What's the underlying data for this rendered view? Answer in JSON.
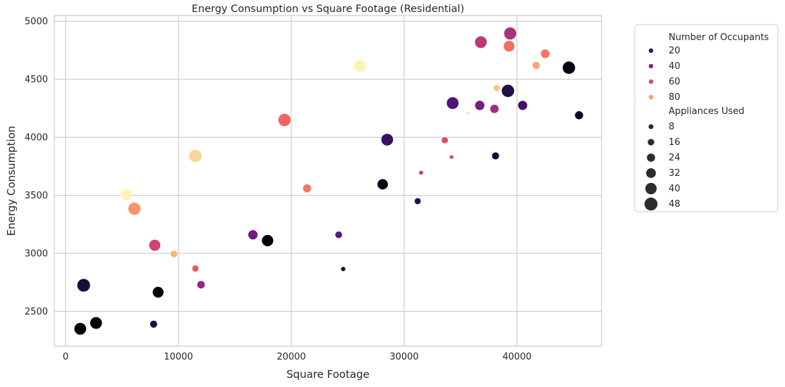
{
  "chart_data": {
    "type": "scatter",
    "title": "Energy Consumption vs Square Footage (Residential)",
    "xlabel": "Square Footage",
    "ylabel": "Energy Consumption",
    "xlim": [
      -1000,
      47500
    ],
    "ylim": [
      2200,
      5050
    ],
    "xticks": [
      0,
      10000,
      20000,
      30000,
      40000
    ],
    "yticks": [
      2500,
      3000,
      3500,
      4000,
      4500,
      5000
    ],
    "grid": true,
    "legend_position": "outside-right",
    "hue": {
      "title": "Number of Occupants",
      "palette": "magma",
      "range": [
        1,
        100
      ],
      "entries": [
        {
          "label": "20",
          "value": 20,
          "color": "#3b0f70"
        },
        {
          "label": "40",
          "value": 40,
          "color": "#8c2981"
        },
        {
          "label": "60",
          "value": 60,
          "color": "#de4968"
        },
        {
          "label": "80",
          "value": 80,
          "color": "#fe9f6d"
        }
      ]
    },
    "size": {
      "title": "Appliances Used",
      "range": [
        1,
        50
      ],
      "entries": [
        {
          "label": "8",
          "value": 8
        },
        {
          "label": "16",
          "value": 16
        },
        {
          "label": "24",
          "value": 24
        },
        {
          "label": "32",
          "value": 32
        },
        {
          "label": "40",
          "value": 40
        },
        {
          "label": "48",
          "value": 48
        }
      ]
    },
    "points": [
      {
        "x": 1300,
        "y": 2350,
        "occupants": 2,
        "appliances": 45
      },
      {
        "x": 2700,
        "y": 2400,
        "occupants": 2,
        "appliances": 45
      },
      {
        "x": 1600,
        "y": 2725,
        "occupants": 12,
        "appliances": 50
      },
      {
        "x": 7800,
        "y": 2390,
        "occupants": 14,
        "appliances": 22
      },
      {
        "x": 8200,
        "y": 2665,
        "occupants": 3,
        "appliances": 40
      },
      {
        "x": 5400,
        "y": 3505,
        "occupants": 98,
        "appliances": 43
      },
      {
        "x": 6100,
        "y": 3385,
        "occupants": 78,
        "appliances": 47
      },
      {
        "x": 7900,
        "y": 3070,
        "occupants": 58,
        "appliances": 42
      },
      {
        "x": 9600,
        "y": 2995,
        "occupants": 85,
        "appliances": 20
      },
      {
        "x": 11500,
        "y": 2870,
        "occupants": 65,
        "appliances": 18
      },
      {
        "x": 12000,
        "y": 2730,
        "occupants": 42,
        "appliances": 24
      },
      {
        "x": 11500,
        "y": 3840,
        "occupants": 92,
        "appliances": 48
      },
      {
        "x": 16600,
        "y": 3160,
        "occupants": 33,
        "appliances": 33
      },
      {
        "x": 17900,
        "y": 3110,
        "occupants": 1,
        "appliances": 43
      },
      {
        "x": 19400,
        "y": 4150,
        "occupants": 68,
        "appliances": 48
      },
      {
        "x": 21400,
        "y": 3560,
        "occupants": 72,
        "appliances": 27
      },
      {
        "x": 24200,
        "y": 3160,
        "occupants": 28,
        "appliances": 20
      },
      {
        "x": 24600,
        "y": 2865,
        "occupants": 10,
        "appliances": 8
      },
      {
        "x": 26100,
        "y": 4615,
        "occupants": 98,
        "appliances": 47
      },
      {
        "x": 28100,
        "y": 3595,
        "occupants": 4,
        "appliances": 38
      },
      {
        "x": 28500,
        "y": 3980,
        "occupants": 20,
        "appliances": 45
      },
      {
        "x": 31200,
        "y": 3450,
        "occupants": 16,
        "appliances": 17
      },
      {
        "x": 31500,
        "y": 3695,
        "occupants": 57,
        "appliances": 7
      },
      {
        "x": 33600,
        "y": 3975,
        "occupants": 62,
        "appliances": 18
      },
      {
        "x": 34200,
        "y": 3830,
        "occupants": 60,
        "appliances": 5
      },
      {
        "x": 34300,
        "y": 4295,
        "occupants": 26,
        "appliances": 45
      },
      {
        "x": 35700,
        "y": 4210,
        "occupants": 95,
        "appliances": 2
      },
      {
        "x": 36700,
        "y": 4275,
        "occupants": 35,
        "appliances": 33
      },
      {
        "x": 36800,
        "y": 4820,
        "occupants": 52,
        "appliances": 45
      },
      {
        "x": 38000,
        "y": 4245,
        "occupants": 45,
        "appliances": 28
      },
      {
        "x": 38100,
        "y": 3840,
        "occupants": 10,
        "appliances": 22
      },
      {
        "x": 38200,
        "y": 4425,
        "occupants": 88,
        "appliances": 18
      },
      {
        "x": 39200,
        "y": 4400,
        "occupants": 15,
        "appliances": 48
      },
      {
        "x": 39300,
        "y": 4785,
        "occupants": 70,
        "appliances": 40
      },
      {
        "x": 39400,
        "y": 4895,
        "occupants": 48,
        "appliances": 47
      },
      {
        "x": 40500,
        "y": 4275,
        "occupants": 22,
        "appliances": 32
      },
      {
        "x": 41700,
        "y": 4620,
        "occupants": 82,
        "appliances": 23
      },
      {
        "x": 42500,
        "y": 4720,
        "occupants": 72,
        "appliances": 30
      },
      {
        "x": 44600,
        "y": 4600,
        "occupants": 3,
        "appliances": 48
      },
      {
        "x": 45500,
        "y": 4190,
        "occupants": 6,
        "appliances": 27
      }
    ]
  }
}
